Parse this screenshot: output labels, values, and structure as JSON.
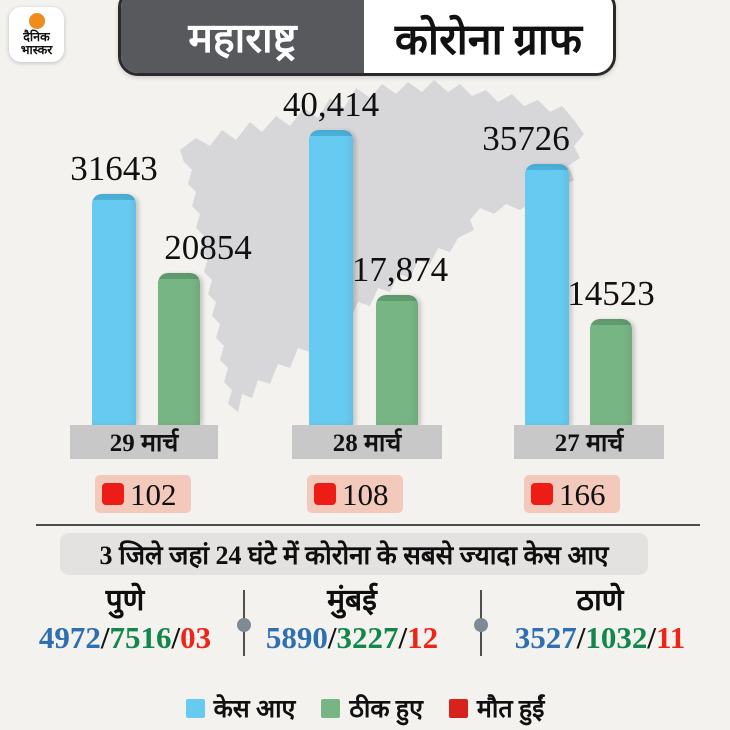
{
  "brand": {
    "logo_line1": "दैनिक",
    "logo_line2": "भास्कर",
    "logo_sun_color": "#f08b1d"
  },
  "header": {
    "region": "महाराष्ट्र",
    "title": "कोरोना ग्राफ"
  },
  "chart_data": {
    "type": "bar",
    "title": "महाराष्ट्र कोरोना ग्राफ",
    "categories": [
      "29 मार्च",
      "28 मार्च",
      "27 मार्च"
    ],
    "series": [
      {
        "name": "केस आए",
        "color": "#67cbf1",
        "cap_color": "#4ab0d8",
        "values": [
          31643,
          40414,
          35726
        ],
        "labels": [
          "31643",
          "40,414",
          "35726"
        ]
      },
      {
        "name": "ठीक हुए",
        "color": "#77b584",
        "cap_color": "#619c6f",
        "values": [
          20854,
          17874,
          14523
        ],
        "labels": [
          "20854",
          "17,874",
          "14523"
        ]
      },
      {
        "name": "मौत हुईं",
        "color": "#ee1c16",
        "cap_color": "#ee1c16",
        "values": [
          102,
          108,
          166
        ],
        "labels": [
          "102",
          "108",
          "166"
        ]
      }
    ],
    "ylim": [
      0,
      40414
    ],
    "grid": false,
    "legend_position": "bottom"
  },
  "districts": {
    "heading": "3 जिले जहां 24 घंटे में कोरोना के सबसे ज्यादा केस आए",
    "separator": "/",
    "items": [
      {
        "name": "पुणे",
        "cases": "4972",
        "recovered": "7516",
        "deaths": "03"
      },
      {
        "name": "मुंबई",
        "cases": "5890",
        "recovered": "3227",
        "deaths": "12"
      },
      {
        "name": "ठाणे",
        "cases": "3527",
        "recovered": "1032",
        "deaths": "11"
      }
    ]
  },
  "legend": {
    "items": [
      {
        "label": "केस आए",
        "color": "#67cbf1"
      },
      {
        "label": "ठीक हुए",
        "color": "#77b584"
      },
      {
        "label": "मौत हुईं",
        "color": "#d8231c"
      }
    ]
  },
  "colors": {
    "background": "#f3f2ee",
    "header_dark": "#58595c",
    "map_gray": "#d7d7d9",
    "date_box": "#c8c8c8",
    "death_pill_bg": "#f2c9ba",
    "death_square": "#ee1c16",
    "district_cases": "#2e6fb2",
    "district_recovered": "#13874b",
    "district_deaths": "#ee2418"
  }
}
